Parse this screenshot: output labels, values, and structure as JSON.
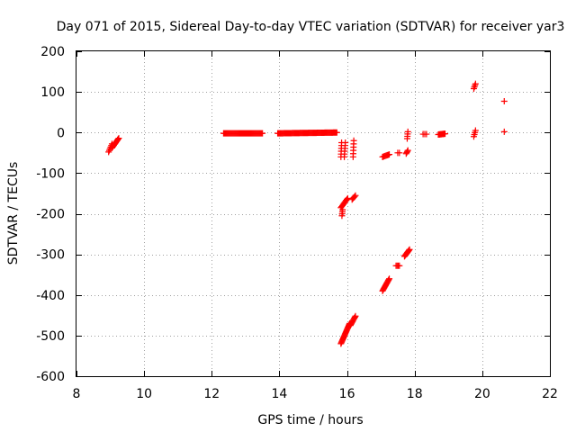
{
  "chart_data": {
    "type": "scatter",
    "title": "Day 071 of 2015, Sidereal Day-to-day VTEC variation (SDTVAR) for receiver yar3",
    "xlabel": "GPS time / hours",
    "ylabel": "SDTVAR / TECUs",
    "xlim": [
      8,
      22
    ],
    "ylim": [
      -600,
      200
    ],
    "xticks": [
      8,
      10,
      12,
      14,
      16,
      18,
      20,
      22
    ],
    "yticks": [
      -600,
      -500,
      -400,
      -300,
      -200,
      -100,
      0,
      100,
      200
    ],
    "grid": true,
    "marker": "+",
    "color": "#ff0000",
    "series": [
      {
        "name": "SDTVAR",
        "segments": [
          {
            "x0": 8.95,
            "x1": 9.05,
            "y0": -48,
            "y1": -28,
            "n": 6
          },
          {
            "x0": 9.05,
            "x1": 9.25,
            "y0": -38,
            "y1": -14,
            "n": 12
          },
          {
            "x0": 12.35,
            "x1": 13.5,
            "y0": -2,
            "y1": -2,
            "n": 45
          },
          {
            "x0": 13.95,
            "x1": 15.7,
            "y0": -2,
            "y1": 0,
            "n": 70
          },
          {
            "x0": 15.82,
            "x1": 15.84,
            "y0": -60,
            "y1": -25,
            "n": 6
          },
          {
            "x0": 15.85,
            "x1": 15.87,
            "y0": -205,
            "y1": -190,
            "n": 4
          },
          {
            "x0": 15.82,
            "x1": 16.02,
            "y0": -185,
            "y1": -162,
            "n": 10
          },
          {
            "x0": 15.92,
            "x1": 15.95,
            "y0": -60,
            "y1": -25,
            "n": 6
          },
          {
            "x0": 16.15,
            "x1": 16.25,
            "y0": -165,
            "y1": -155,
            "n": 5
          },
          {
            "x0": 16.18,
            "x1": 16.2,
            "y0": -60,
            "y1": -20,
            "n": 6
          },
          {
            "x0": 15.82,
            "x1": 16.08,
            "y0": -520,
            "y1": -470,
            "n": 22
          },
          {
            "x0": 16.1,
            "x1": 16.25,
            "y0": -475,
            "y1": -452,
            "n": 10
          },
          {
            "x0": 17.05,
            "x1": 17.25,
            "y0": -60,
            "y1": -54,
            "n": 8
          },
          {
            "x0": 17.05,
            "x1": 17.25,
            "y0": -390,
            "y1": -360,
            "n": 14
          },
          {
            "x0": 17.45,
            "x1": 17.55,
            "y0": -328,
            "y1": -328,
            "n": 4
          },
          {
            "x0": 17.5,
            "x1": 17.55,
            "y0": -50,
            "y1": -50,
            "n": 2
          },
          {
            "x0": 17.7,
            "x1": 17.85,
            "y0": -305,
            "y1": -288,
            "n": 10
          },
          {
            "x0": 17.75,
            "x1": 17.8,
            "y0": -52,
            "y1": -44,
            "n": 4
          },
          {
            "x0": 17.78,
            "x1": 17.8,
            "y0": -15,
            "y1": 2,
            "n": 4
          },
          {
            "x0": 18.25,
            "x1": 18.35,
            "y0": -4,
            "y1": -4,
            "n": 3
          },
          {
            "x0": 18.7,
            "x1": 18.9,
            "y0": -5,
            "y1": -3,
            "n": 12
          },
          {
            "x0": 19.75,
            "x1": 19.8,
            "y0": 108,
            "y1": 120,
            "n": 4
          },
          {
            "x0": 19.75,
            "x1": 19.8,
            "y0": -10,
            "y1": 5,
            "n": 4
          },
          {
            "x0": 20.65,
            "x1": 20.65,
            "y0": 77,
            "y1": 77,
            "n": 1
          },
          {
            "x0": 20.65,
            "x1": 20.65,
            "y0": 2,
            "y1": 2,
            "n": 1
          }
        ]
      }
    ]
  }
}
